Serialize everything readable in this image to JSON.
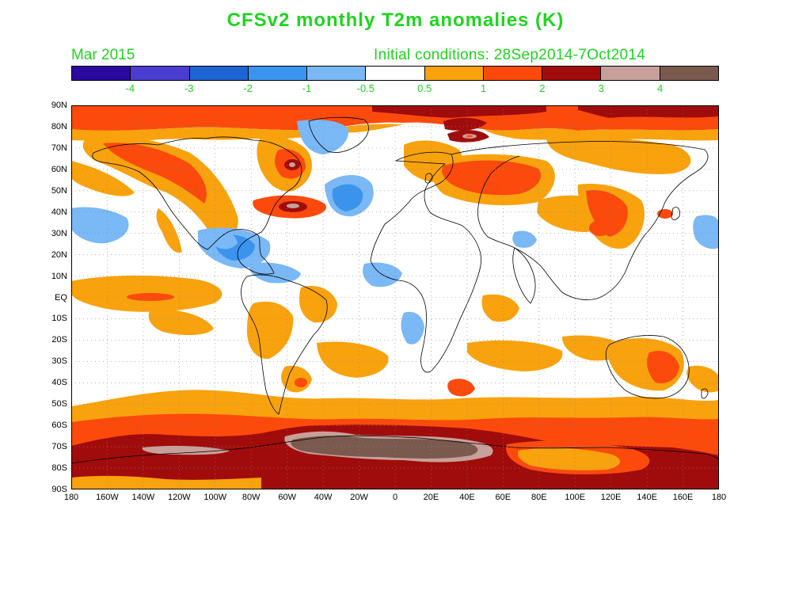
{
  "title": "CFSv2 monthly T2m anomalies (K)",
  "month": "Mar 2015",
  "initial_conditions": "Initial conditions: 28Sep2014-7Oct2014",
  "colorbar": {
    "colors": [
      "#2a0a9e",
      "#4a3ed0",
      "#1e64d4",
      "#3a94ee",
      "#7ab8f6",
      "#ffffff",
      "#f8a20e",
      "#fb4a0c",
      "#a00c0c",
      "#c8a09a",
      "#7a5a4e"
    ],
    "labels": [
      "-4",
      "-3",
      "-2",
      "-1",
      "-0.5",
      "0.5",
      "1",
      "2",
      "3",
      "4"
    ]
  },
  "lat_labels": [
    "90N",
    "80N",
    "70N",
    "60N",
    "50N",
    "40N",
    "30N",
    "20N",
    "10N",
    "EQ",
    "10S",
    "20S",
    "30S",
    "40S",
    "50S",
    "60S",
    "70S",
    "80S",
    "90S"
  ],
  "lon_labels": [
    "180",
    "160W",
    "140W",
    "120W",
    "100W",
    "80W",
    "60W",
    "40W",
    "20W",
    "0",
    "20E",
    "40E",
    "60E",
    "80E",
    "100E",
    "120E",
    "140E",
    "160E",
    "180"
  ]
}
